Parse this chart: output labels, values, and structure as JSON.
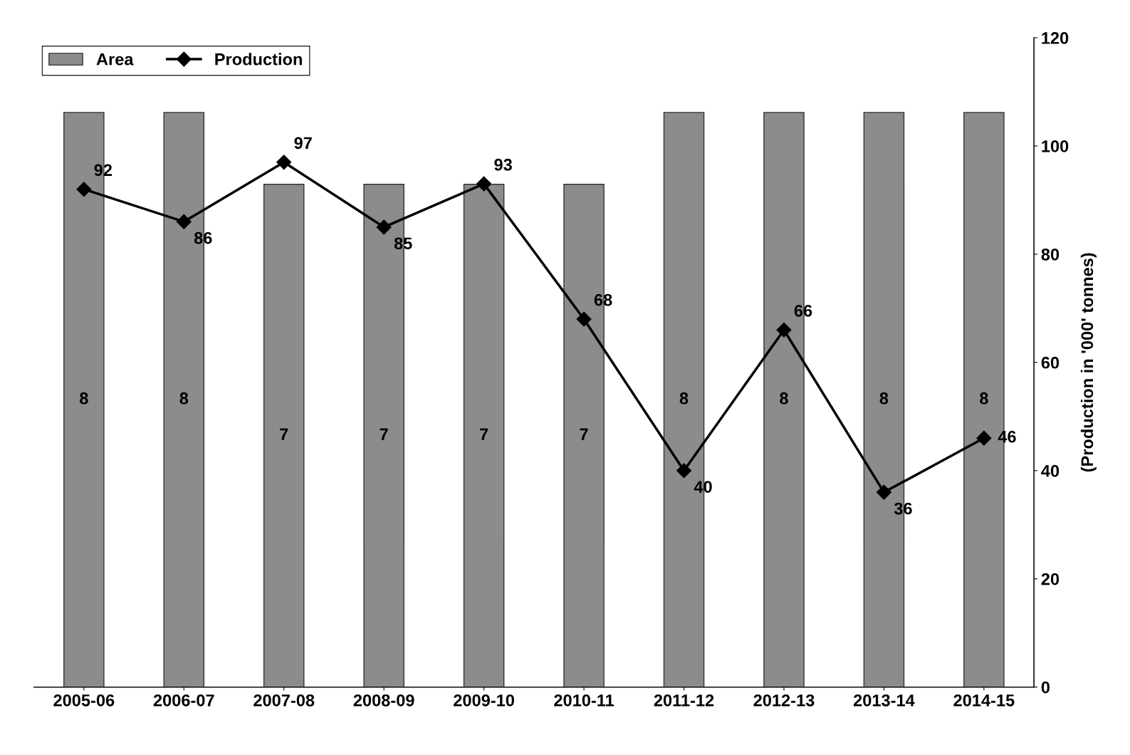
{
  "chart_data": {
    "type": "bar",
    "categories": [
      "2005-06",
      "2006-07",
      "2007-08",
      "2008-09",
      "2009-10",
      "2010-11",
      "2011-12",
      "2012-13",
      "2013-14",
      "2014-15"
    ],
    "series": [
      {
        "name": "Area",
        "color": "#8c8c8c",
        "values": [
          8,
          8,
          7,
          7,
          7,
          7,
          8,
          8,
          8,
          8
        ],
        "value_labels": [
          "8",
          "8",
          "7",
          "7",
          "7",
          "7",
          "8",
          "8",
          "8",
          "8"
        ]
      },
      {
        "name": "Production",
        "type": "line",
        "axis": "y2",
        "color": "#000000",
        "values": [
          92,
          86,
          97,
          85,
          93,
          68,
          40,
          66,
          36,
          46
        ],
        "value_labels": [
          "92",
          "86",
          "97",
          "85",
          "93",
          "68",
          "40",
          "66",
          "36",
          "46"
        ]
      }
    ],
    "y2label": "(Production in '000' tonnes)",
    "y2lim": [
      0,
      120
    ],
    "y2ticks": [
      0,
      20,
      40,
      60,
      80,
      100,
      120
    ],
    "legend": "top left",
    "marker": "diamond",
    "line_style": "solid"
  }
}
